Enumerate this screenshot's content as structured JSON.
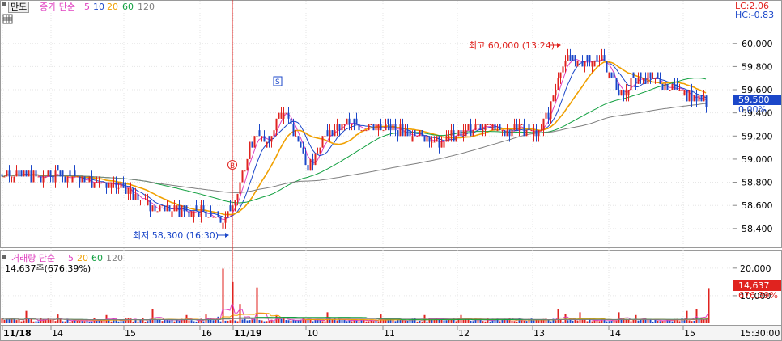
{
  "toolbar": {
    "mando_label": "만도",
    "price_title": "종가 단순",
    "ma_periods": [
      "5",
      "10",
      "20",
      "60",
      "120"
    ],
    "volume_title": "거래량 단순",
    "vol_ma_periods": [
      "5",
      "20",
      "60",
      "120"
    ],
    "volume_readout": "14,637주(676.39%)"
  },
  "top_right": {
    "lc": "LC:2.06",
    "hc": "HC:-0.83"
  },
  "colors": {
    "up": "#e0231f",
    "down": "#1b47c9",
    "ma5": "#e040c0",
    "ma10": "#1b47c9",
    "ma20": "#f0a000",
    "ma60": "#12a040",
    "ma120": "#7f7f7f",
    "current_price_box": "#1b47c9",
    "current_volume_box": "#e0231f"
  },
  "chart_data": [
    {
      "type": "candlestick",
      "y_axis": {
        "ticks": [
          "60,000",
          "59,800",
          "59,600",
          "59,400",
          "59,200",
          "59,000",
          "58,800",
          "58,600",
          "58,400"
        ],
        "tick_values": [
          60000,
          59800,
          59600,
          59400,
          59200,
          59000,
          58800,
          58600,
          58400
        ],
        "range": [
          58280,
          60180
        ]
      },
      "x_axis": {
        "dates": [
          "11/18",
          "14",
          "15",
          "16",
          "11/19",
          "10",
          "11",
          "12",
          "13",
          "14",
          "15"
        ],
        "time_label": "15:30:00"
      },
      "annotations": {
        "high": "최고 60,000 (13:24)",
        "low": "최저 58,300 (16:30)",
        "buy_marker": "B",
        "sell_marker": "S"
      },
      "current_price": "59,500",
      "current_change": "0.00%",
      "ma_labels": [
        "5",
        "10",
        "20",
        "60",
        "120"
      ],
      "ma_values_now": {
        "ma5": 59600,
        "ma10": 59610,
        "ma20": 59640,
        "ma60": 59600,
        "ma120": 59460
      },
      "price_anchors": [
        [
          0,
          58870
        ],
        [
          28,
          58860
        ],
        [
          60,
          58850
        ],
        [
          95,
          58830
        ],
        [
          120,
          58800
        ],
        [
          150,
          58760
        ],
        [
          185,
          58580
        ],
        [
          260,
          58530
        ],
        [
          283,
          58500
        ],
        [
          290,
          58620
        ],
        [
          300,
          58900
        ],
        [
          315,
          59250
        ],
        [
          330,
          59150
        ],
        [
          345,
          59450
        ],
        [
          355,
          59350
        ],
        [
          370,
          59100
        ],
        [
          380,
          58900
        ],
        [
          395,
          59150
        ],
        [
          420,
          59300
        ],
        [
          470,
          59280
        ],
        [
          520,
          59200
        ],
        [
          545,
          59150
        ],
        [
          575,
          59250
        ],
        [
          620,
          59250
        ],
        [
          665,
          59250
        ],
        [
          680,
          59450
        ],
        [
          690,
          59750
        ],
        [
          700,
          59850
        ],
        [
          745,
          59850
        ],
        [
          765,
          59550
        ],
        [
          790,
          59700
        ],
        [
          815,
          59680
        ],
        [
          845,
          59560
        ],
        [
          860,
          59520
        ],
        [
          874,
          59500
        ]
      ]
    },
    {
      "type": "bar",
      "title": "거래량 단순",
      "y_axis": {
        "ticks": [
          "20,000",
          "10,000"
        ],
        "tick_values": [
          20000,
          10000
        ],
        "range": [
          0,
          22000
        ]
      },
      "current_volume": "14,637",
      "current_ratio": "676.39%",
      "volume_spikes": [
        [
          32,
          4500
        ],
        [
          72,
          3200
        ],
        [
          130,
          3000
        ],
        [
          187,
          5200
        ],
        [
          230,
          3000
        ],
        [
          254,
          3200
        ],
        [
          270,
          2400
        ],
        [
          276,
          19800
        ],
        [
          288,
          15000
        ],
        [
          297,
          7000
        ],
        [
          317,
          13000
        ],
        [
          340,
          3000
        ],
        [
          405,
          4000
        ],
        [
          470,
          3200
        ],
        [
          525,
          3000
        ],
        [
          570,
          3000
        ],
        [
          640,
          2000
        ],
        [
          688,
          5000
        ],
        [
          697,
          3500
        ],
        [
          715,
          4000
        ],
        [
          765,
          4000
        ],
        [
          785,
          3000
        ],
        [
          848,
          4500
        ],
        [
          860,
          5000
        ],
        [
          876,
          12500
        ]
      ]
    }
  ]
}
